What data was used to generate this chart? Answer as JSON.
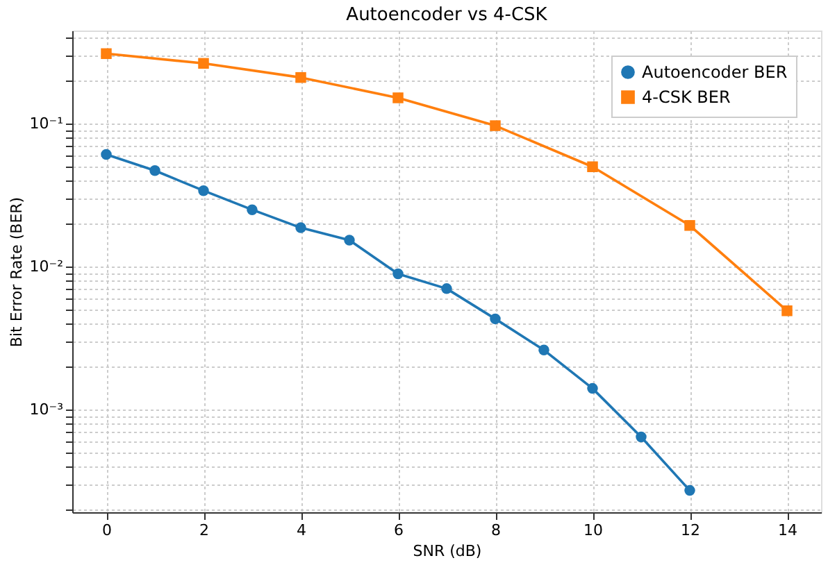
{
  "chart_data": {
    "type": "line",
    "title": "Autoencoder vs 4-CSK",
    "xlabel": "SNR (dB)",
    "ylabel": "Bit Error Rate (BER)",
    "log": "y",
    "grid": true,
    "legend": "top right",
    "line_style": "solid",
    "xlim": [
      -0.7,
      14.7
    ],
    "xticks": [
      0,
      2,
      4,
      6,
      8,
      10,
      12,
      14
    ],
    "ylim": [
      0.00019,
      0.45
    ],
    "yticks": [
      {
        "value": 0.0002,
        "label": null
      },
      {
        "value": 0.0003,
        "label": null
      },
      {
        "value": 0.0004,
        "label": null
      },
      {
        "value": 0.0005,
        "label": null
      },
      {
        "value": 0.0006,
        "label": null
      },
      {
        "value": 0.0007,
        "label": null
      },
      {
        "value": 0.0008,
        "label": null
      },
      {
        "value": 0.0009,
        "label": null
      },
      {
        "value": 0.001,
        "label": "10⁻³"
      },
      {
        "value": 0.002,
        "label": null
      },
      {
        "value": 0.003,
        "label": null
      },
      {
        "value": 0.004,
        "label": null
      },
      {
        "value": 0.005,
        "label": null
      },
      {
        "value": 0.006,
        "label": null
      },
      {
        "value": 0.007,
        "label": null
      },
      {
        "value": 0.008,
        "label": null
      },
      {
        "value": 0.009,
        "label": null
      },
      {
        "value": 0.01,
        "label": "10⁻²"
      },
      {
        "value": 0.02,
        "label": null
      },
      {
        "value": 0.03,
        "label": null
      },
      {
        "value": 0.04,
        "label": null
      },
      {
        "value": 0.05,
        "label": null
      },
      {
        "value": 0.06,
        "label": null
      },
      {
        "value": 0.07,
        "label": null
      },
      {
        "value": 0.08,
        "label": null
      },
      {
        "value": 0.09,
        "label": null
      },
      {
        "value": 0.1,
        "label": "10⁻¹"
      },
      {
        "value": 0.2,
        "label": null
      },
      {
        "value": 0.3,
        "label": null
      },
      {
        "value": 0.4,
        "label": null
      }
    ],
    "series": [
      {
        "name": "Autoencoder BER",
        "color": "#1f77b4",
        "marker": "circle",
        "x": [
          0,
          1,
          2,
          3,
          4,
          5,
          6,
          7,
          8,
          9,
          10,
          11,
          12
        ],
        "values": [
          0.061,
          0.047,
          0.034,
          0.025,
          0.0187,
          0.0153,
          0.0089,
          0.007,
          0.0043,
          0.0026,
          0.0014,
          0.00064,
          0.00027
        ]
      },
      {
        "name": "4-CSK BER",
        "color": "#ff7f0e",
        "marker": "square",
        "x": [
          0,
          2,
          4,
          6,
          8,
          10,
          12,
          14
        ],
        "values": [
          0.31,
          0.265,
          0.211,
          0.152,
          0.097,
          0.05,
          0.0194,
          0.0049
        ]
      }
    ]
  }
}
